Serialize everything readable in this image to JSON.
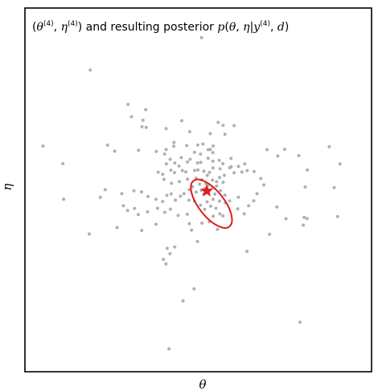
{
  "chart_data": {
    "type": "scatter",
    "title_parts": {
      "open_paren": "(",
      "theta": "θ",
      "sup_theta": "(4)",
      "comma": ", ",
      "eta": "η",
      "sup_eta": "(4)",
      "close_text": ") and resulting posterior ",
      "p_func": "p",
      "args_open": "(",
      "arg_theta": "θ",
      "arg_comma": ", ",
      "arg_eta": "η",
      "bar": "|",
      "arg_y": "y",
      "sup_y": "(4)",
      "arg_comma2": ", ",
      "arg_d": "d",
      "args_close": ")"
    },
    "xlabel": "θ",
    "ylabel": "η",
    "xlim": [
      -1.0,
      1.0
    ],
    "ylim": [
      -1.0,
      1.0
    ],
    "grid": false,
    "ticks": false,
    "point_color": "#b0b0b0",
    "highlight_color": "#e41a1c",
    "points": [
      [
        0.019,
        0.837
      ],
      [
        -0.623,
        0.659
      ],
      [
        -0.405,
        0.47
      ],
      [
        -0.303,
        0.441
      ],
      [
        -0.319,
        0.383
      ],
      [
        -0.3,
        0.343
      ],
      [
        -0.385,
        0.402
      ],
      [
        -0.325,
        0.347
      ],
      [
        -0.185,
        0.337
      ],
      [
        -0.095,
        0.38
      ],
      [
        0.115,
        0.371
      ],
      [
        0.207,
        0.353
      ],
      [
        0.143,
        0.355
      ],
      [
        0.154,
        0.306
      ],
      [
        0.069,
        0.309
      ],
      [
        -0.049,
        0.32
      ],
      [
        0.086,
        0.242
      ],
      [
        -0.003,
        0.247
      ],
      [
        0.027,
        0.252
      ],
      [
        0.069,
        0.222
      ],
      [
        -0.067,
        0.244
      ],
      [
        0.013,
        0.197
      ],
      [
        0.057,
        0.221
      ],
      [
        0.084,
        0.205
      ],
      [
        -0.022,
        0.206
      ],
      [
        -0.14,
        0.261
      ],
      [
        -0.141,
        0.24
      ],
      [
        -0.185,
        0.222
      ],
      [
        -0.194,
        0.197
      ],
      [
        -0.184,
        0.143
      ],
      [
        -0.242,
        0.211
      ],
      [
        -0.345,
        0.218
      ],
      [
        -0.482,
        0.213
      ],
      [
        -0.523,
        0.246
      ],
      [
        -0.896,
        0.241
      ],
      [
        -0.781,
        0.144
      ],
      [
        -0.111,
        0.131
      ],
      [
        -0.135,
        0.148
      ],
      [
        -0.162,
        0.168
      ],
      [
        -0.098,
        0.178
      ],
      [
        -0.062,
        0.153
      ],
      [
        -0.047,
        0.168
      ],
      [
        -0.004,
        0.148
      ],
      [
        0.015,
        0.152
      ],
      [
        0.057,
        0.174
      ],
      [
        0.084,
        0.158
      ],
      [
        0.121,
        0.163
      ],
      [
        0.142,
        0.144
      ],
      [
        0.189,
        0.173
      ],
      [
        0.19,
        0.127
      ],
      [
        0.232,
        0.129
      ],
      [
        0.268,
        0.143
      ],
      [
        0.282,
        0.106
      ],
      [
        0.252,
        0.098
      ],
      [
        0.207,
        0.094
      ],
      [
        0.182,
        0.122
      ],
      [
        0.151,
        0.081
      ],
      [
        0.126,
        0.116
      ],
      [
        0.085,
        0.121
      ],
      [
        0.065,
        0.096
      ],
      [
        0.032,
        0.103
      ],
      [
        -0.002,
        0.109
      ],
      [
        -0.021,
        0.107
      ],
      [
        -0.072,
        0.099
      ],
      [
        -0.092,
        0.106
      ],
      [
        -0.137,
        0.095
      ],
      [
        -0.158,
        0.108
      ],
      [
        -0.205,
        0.086
      ],
      [
        -0.231,
        0.097
      ],
      [
        -0.197,
        0.058
      ],
      [
        -0.154,
        0.036
      ],
      [
        -0.109,
        0.046
      ],
      [
        -0.062,
        0.059
      ],
      [
        -0.012,
        0.064
      ],
      [
        0.021,
        0.055
      ],
      [
        0.044,
        0.034
      ],
      [
        0.082,
        0.054
      ],
      [
        0.106,
        0.045
      ],
      [
        0.123,
        0.068
      ],
      [
        0.144,
        0.042
      ],
      [
        0.106,
        0.021
      ],
      [
        0.082,
        0.011
      ],
      [
        0.057,
        0.026
      ],
      [
        0.037,
        0.008
      ],
      [
        0.018,
        -0.002
      ],
      [
        0.008,
        0.031
      ],
      [
        -0.034,
        0.017
      ],
      [
        -0.052,
        0.001
      ],
      [
        -0.012,
        -0.012
      ],
      [
        0.031,
        -0.024
      ],
      [
        0.064,
        -0.006
      ],
      [
        0.096,
        -0.023
      ],
      [
        0.128,
        -0.004
      ],
      [
        0.154,
        -0.029
      ],
      [
        0.181,
        -0.061
      ],
      [
        0.157,
        -0.071
      ],
      [
        0.123,
        -0.062
      ],
      [
        0.086,
        -0.052
      ],
      [
        0.051,
        -0.066
      ],
      [
        0.072,
        -0.089
      ],
      [
        0.102,
        -0.101
      ],
      [
        0.125,
        -0.132
      ],
      [
        0.143,
        -0.143
      ],
      [
        0.087,
        -0.145
      ],
      [
        0.037,
        -0.107
      ],
      [
        0.013,
        -0.084
      ],
      [
        -0.022,
        -0.062
      ],
      [
        -0.054,
        -0.056
      ],
      [
        -0.082,
        -0.021
      ],
      [
        -0.103,
        -0.035
      ],
      [
        -0.132,
        -0.056
      ],
      [
        -0.156,
        -0.022
      ],
      [
        -0.181,
        -0.03
      ],
      [
        -0.205,
        -0.064
      ],
      [
        -0.244,
        -0.052
      ],
      [
        -0.29,
        -0.036
      ],
      [
        -0.327,
        -0.011
      ],
      [
        -0.371,
        -0.005
      ],
      [
        -0.441,
        -0.021
      ],
      [
        -0.537,
        0.001
      ],
      [
        -0.565,
        -0.041
      ],
      [
        -0.777,
        -0.051
      ],
      [
        -0.432,
        -0.087
      ],
      [
        -0.408,
        -0.113
      ],
      [
        -0.368,
        -0.102
      ],
      [
        -0.346,
        -0.136
      ],
      [
        -0.293,
        -0.121
      ],
      [
        -0.235,
        -0.101
      ],
      [
        -0.193,
        -0.123
      ],
      [
        -0.161,
        -0.106
      ],
      [
        -0.116,
        -0.141
      ],
      [
        -0.063,
        -0.134
      ],
      [
        -0.051,
        -0.186
      ],
      [
        0.022,
        -0.183
      ],
      [
        0.064,
        -0.175
      ],
      [
        0.228,
        -0.104
      ],
      [
        0.265,
        -0.132
      ],
      [
        0.291,
        -0.087
      ],
      [
        0.32,
        -0.06
      ],
      [
        0.339,
        -0.021
      ],
      [
        0.378,
        0.027
      ],
      [
        0.361,
        0.063
      ],
      [
        0.322,
        0.101
      ],
      [
        0.397,
        0.221
      ],
      [
        0.459,
        0.186
      ],
      [
        0.499,
        0.223
      ],
      [
        0.58,
        0.188
      ],
      [
        0.629,
        0.109
      ],
      [
        0.617,
        0.016
      ],
      [
        0.756,
        0.237
      ],
      [
        0.818,
        0.143
      ],
      [
        0.784,
        0.013
      ],
      [
        0.454,
        -0.094
      ],
      [
        0.506,
        -0.159
      ],
      [
        0.611,
        -0.151
      ],
      [
        0.628,
        -0.158
      ],
      [
        0.606,
        -0.194
      ],
      [
        0.804,
        -0.147
      ],
      [
        0.411,
        -0.244
      ],
      [
        0.281,
        -0.338
      ],
      [
        0.111,
        -0.217
      ],
      [
        -0.039,
        -0.221
      ],
      [
        -0.244,
        -0.189
      ],
      [
        -0.326,
        -0.223
      ],
      [
        -0.468,
        -0.207
      ],
      [
        -0.629,
        -0.243
      ],
      [
        -0.179,
        -0.322
      ],
      [
        -0.136,
        -0.314
      ],
      [
        -0.163,
        -0.351
      ],
      [
        -0.201,
        -0.382
      ],
      [
        -0.186,
        -0.407
      ],
      [
        -0.024,
        -0.544
      ],
      [
        -0.088,
        -0.61
      ],
      [
        0.587,
        -0.728
      ],
      [
        -0.169,
        -0.874
      ],
      [
        -0.004,
        -0.284
      ],
      [
        0.232,
        -0.04
      ],
      [
        0.052,
        0.08
      ]
    ],
    "highlight_point": [
      0.049,
      -0.006
    ],
    "posterior_ellipse": {
      "center": [
        0.076,
        -0.076
      ],
      "semi_axes": [
        0.168,
        0.07
      ],
      "angle_deg": -52
    }
  }
}
